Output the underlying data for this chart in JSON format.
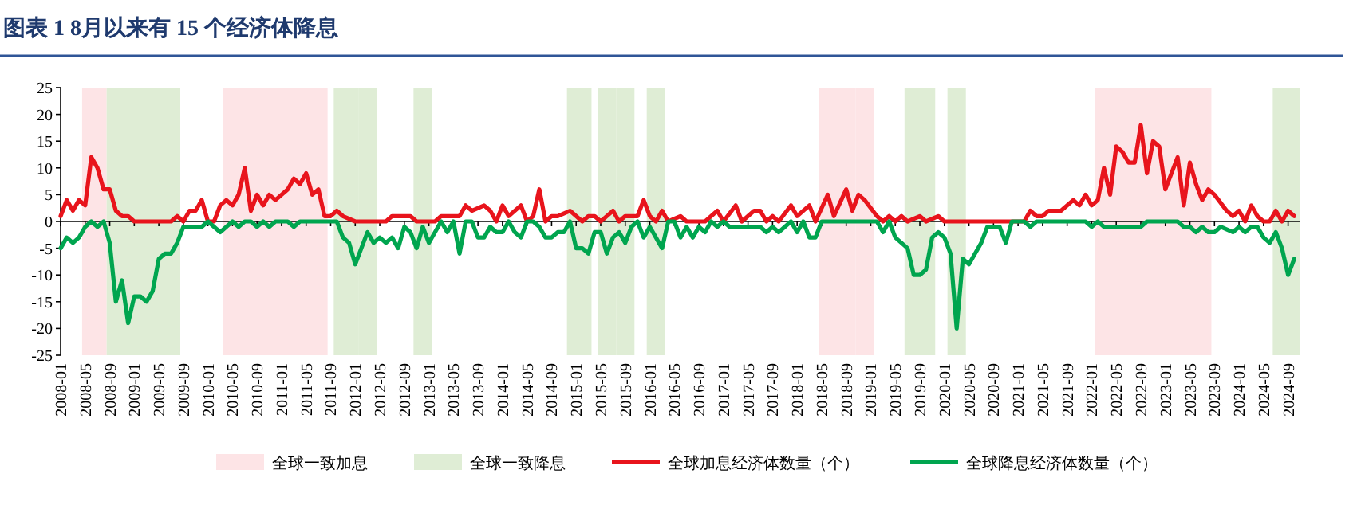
{
  "chart_data": {
    "type": "line",
    "title": "图表 1  8月以来有 15 个经济体降息",
    "legend": "bottom",
    "xlim": [
      "2008-01",
      "2024-11"
    ],
    "xticks": [
      "2008-01",
      "2008-05",
      "2008-09",
      "2009-01",
      "2009-05",
      "2009-09",
      "2010-01",
      "2010-05",
      "2010-09",
      "2011-01",
      "2011-05",
      "2011-09",
      "2012-01",
      "2012-05",
      "2012-09",
      "2013-01",
      "2013-05",
      "2013-09",
      "2014-01",
      "2014-05",
      "2014-09",
      "2015-01",
      "2015-05",
      "2015-09",
      "2016-01",
      "2016-05",
      "2016-09",
      "2017-01",
      "2017-05",
      "2017-09",
      "2018-01",
      "2018-05",
      "2018-09",
      "2019-01",
      "2019-05",
      "2019-09",
      "2020-01",
      "2020-05",
      "2020-09",
      "2021-01",
      "2021-05",
      "2021-09",
      "2022-01",
      "2022-05",
      "2022-09",
      "2023-01",
      "2023-05",
      "2023-09",
      "2024-01",
      "2024-05",
      "2024-09"
    ],
    "ylim": [
      -25,
      25
    ],
    "yticks": [
      -25,
      -20,
      -15,
      -10,
      -5,
      0,
      5,
      10,
      15,
      20,
      25
    ],
    "bands": [
      {
        "axis": "x",
        "from": "2008-05",
        "to": "2008-08",
        "label": "全球一致加息",
        "color": "#fde4e6"
      },
      {
        "axis": "x",
        "from": "2008-09",
        "to": "2009-08",
        "label": "全球一致降息",
        "color": "#dfedd5"
      },
      {
        "axis": "x",
        "from": "2010-04",
        "to": "2011-08",
        "color": "#fde4e6"
      },
      {
        "axis": "x",
        "from": "2011-10",
        "to": "2012-01",
        "color": "#dfedd5"
      },
      {
        "axis": "x",
        "from": "2012-02",
        "to": "2012-04",
        "color": "#dfedd5"
      },
      {
        "axis": "x",
        "from": "2012-11",
        "to": "2013-01",
        "color": "#dfedd5"
      },
      {
        "axis": "x",
        "from": "2014-12",
        "to": "2015-03",
        "color": "#dfedd5"
      },
      {
        "axis": "x",
        "from": "2015-05",
        "to": "2015-07",
        "color": "#dfedd5"
      },
      {
        "axis": "x",
        "from": "2015-08",
        "to": "2015-10",
        "color": "#dfedd5"
      },
      {
        "axis": "x",
        "from": "2016-01",
        "to": "2016-03",
        "color": "#dfedd5"
      },
      {
        "axis": "x",
        "from": "2018-05",
        "to": "2018-10",
        "color": "#fde4e6"
      },
      {
        "axis": "x",
        "from": "2018-11",
        "to": "2019-01",
        "color": "#fde4e6"
      },
      {
        "axis": "x",
        "from": "2019-07",
        "to": "2019-11",
        "color": "#dfedd5"
      },
      {
        "axis": "x",
        "from": "2020-02",
        "to": "2020-04",
        "color": "#dfedd5"
      },
      {
        "axis": "x",
        "from": "2022-02",
        "to": "2023-08",
        "color": "#fde4e6"
      },
      {
        "axis": "x",
        "from": "2024-07",
        "to": "2024-11",
        "color": "#dfedd5"
      }
    ],
    "series": [
      {
        "name": "全球加息经济体数量（个）",
        "color": "#e8141c",
        "x": [
          "2008-01",
          "2008-02",
          "2008-03",
          "2008-04",
          "2008-05",
          "2008-06",
          "2008-07",
          "2008-08",
          "2008-09",
          "2008-10",
          "2008-11",
          "2008-12",
          "2009-01",
          "2009-07",
          "2009-08",
          "2009-09",
          "2009-10",
          "2009-11",
          "2009-12",
          "2010-01",
          "2010-02",
          "2010-03",
          "2010-04",
          "2010-05",
          "2010-06",
          "2010-07",
          "2010-08",
          "2010-09",
          "2010-10",
          "2010-11",
          "2010-12",
          "2011-02",
          "2011-03",
          "2011-04",
          "2011-05",
          "2011-06",
          "2011-07",
          "2011-08",
          "2011-09",
          "2011-10",
          "2011-11",
          "2012-01",
          "2012-06",
          "2012-07",
          "2012-10",
          "2012-11",
          "2013-02",
          "2013-03",
          "2013-06",
          "2013-07",
          "2013-08",
          "2013-10",
          "2013-11",
          "2013-12",
          "2014-01",
          "2014-02",
          "2014-04",
          "2014-05",
          "2014-06",
          "2014-07",
          "2014-08",
          "2014-09",
          "2014-10",
          "2014-12",
          "2015-01",
          "2015-02",
          "2015-03",
          "2015-04",
          "2015-05",
          "2015-07",
          "2015-08",
          "2015-09",
          "2015-11",
          "2015-12",
          "2016-01",
          "2016-02",
          "2016-03",
          "2016-04",
          "2016-06",
          "2016-07",
          "2016-10",
          "2016-12",
          "2017-01",
          "2017-03",
          "2017-04",
          "2017-06",
          "2017-07",
          "2017-08",
          "2017-09",
          "2017-10",
          "2017-12",
          "2018-01",
          "2018-03",
          "2018-04",
          "2018-06",
          "2018-07",
          "2018-09",
          "2018-10",
          "2018-11",
          "2018-12",
          "2019-02",
          "2019-03",
          "2019-04",
          "2019-05",
          "2019-06",
          "2019-07",
          "2019-09",
          "2019-10",
          "2019-12",
          "2020-01",
          "2021-02",
          "2021-03",
          "2021-04",
          "2021-05",
          "2021-06",
          "2021-08",
          "2021-10",
          "2021-11",
          "2021-12",
          "2022-01",
          "2022-02",
          "2022-03",
          "2022-04",
          "2022-05",
          "2022-06",
          "2022-07",
          "2022-08",
          "2022-09",
          "2022-10",
          "2022-11",
          "2022-12",
          "2023-01",
          "2023-03",
          "2023-04",
          "2023-05",
          "2023-06",
          "2023-07",
          "2023-08",
          "2023-09",
          "2023-11",
          "2023-12",
          "2024-01",
          "2024-02",
          "2024-03",
          "2024-04",
          "2024-05",
          "2024-06",
          "2024-07",
          "2024-08",
          "2024-09",
          "2024-10"
        ],
        "values": [
          1,
          4,
          2,
          4,
          3,
          12,
          10,
          6,
          6,
          2,
          1,
          1,
          0,
          0,
          1,
          0,
          2,
          2,
          4,
          0,
          0,
          3,
          4,
          3,
          5,
          10,
          2,
          5,
          3,
          5,
          4,
          6,
          8,
          7,
          9,
          5,
          6,
          1,
          1,
          2,
          1,
          0,
          0,
          1,
          1,
          0,
          0,
          1,
          1,
          3,
          2,
          3,
          2,
          0,
          3,
          1,
          3,
          0,
          1,
          6,
          0,
          1,
          1,
          2,
          1,
          0,
          1,
          1,
          0,
          2,
          0,
          1,
          1,
          4,
          1,
          0,
          2,
          0,
          1,
          0,
          0,
          2,
          0,
          3,
          0,
          2,
          2,
          0,
          1,
          0,
          3,
          1,
          3,
          0,
          5,
          1,
          6,
          2,
          5,
          4,
          1,
          0,
          1,
          0,
          1,
          0,
          1,
          0,
          1,
          0,
          0,
          2,
          1,
          1,
          2,
          2,
          4,
          3,
          5,
          3,
          4,
          10,
          5,
          14,
          13,
          11,
          11,
          18,
          9,
          15,
          14,
          6,
          12,
          3,
          11,
          7,
          4,
          6,
          5,
          2,
          1,
          2,
          0,
          3,
          1,
          0,
          0,
          2,
          0,
          2,
          1
        ]
      },
      {
        "name": "全球降息经济体数量（个）",
        "color": "#00a54f",
        "x": [
          "2008-01",
          "2008-02",
          "2008-03",
          "2008-04",
          "2008-05",
          "2008-06",
          "2008-07",
          "2008-08",
          "2008-09",
          "2008-10",
          "2008-11",
          "2008-12",
          "2009-01",
          "2009-02",
          "2009-03",
          "2009-04",
          "2009-05",
          "2009-06",
          "2009-07",
          "2009-08",
          "2009-09",
          "2009-12",
          "2010-01",
          "2010-02",
          "2010-03",
          "2010-04",
          "2010-05",
          "2010-06",
          "2010-07",
          "2010-08",
          "2010-09",
          "2010-10",
          "2010-11",
          "2010-12",
          "2011-02",
          "2011-03",
          "2011-04",
          "2011-10",
          "2011-11",
          "2011-12",
          "2012-01",
          "2012-02",
          "2012-03",
          "2012-04",
          "2012-05",
          "2012-06",
          "2012-07",
          "2012-08",
          "2012-09",
          "2012-10",
          "2012-11",
          "2012-12",
          "2013-01",
          "2013-02",
          "2013-03",
          "2013-04",
          "2013-05",
          "2013-06",
          "2013-07",
          "2013-08",
          "2013-09",
          "2013-10",
          "2013-11",
          "2013-12",
          "2014-01",
          "2014-02",
          "2014-03",
          "2014-04",
          "2014-05",
          "2014-06",
          "2014-07",
          "2014-08",
          "2014-09",
          "2014-10",
          "2014-11",
          "2014-12",
          "2015-01",
          "2015-02",
          "2015-03",
          "2015-04",
          "2015-05",
          "2015-06",
          "2015-07",
          "2015-08",
          "2015-09",
          "2015-10",
          "2015-11",
          "2015-12",
          "2016-01",
          "2016-03",
          "2016-04",
          "2016-05",
          "2016-06",
          "2016-07",
          "2016-08",
          "2016-09",
          "2016-10",
          "2016-11",
          "2016-12",
          "2017-01",
          "2017-02",
          "2017-07",
          "2017-08",
          "2017-09",
          "2017-10",
          "2017-11",
          "2017-12",
          "2018-01",
          "2018-02",
          "2018-03",
          "2018-04",
          "2018-05",
          "2019-02",
          "2019-03",
          "2019-04",
          "2019-05",
          "2019-06",
          "2019-07",
          "2019-08",
          "2019-09",
          "2019-10",
          "2019-11",
          "2019-12",
          "2020-01",
          "2020-02",
          "2020-03",
          "2020-04",
          "2020-05",
          "2020-06",
          "2020-07",
          "2020-08",
          "2020-10",
          "2020-11",
          "2020-12",
          "2021-02",
          "2021-03",
          "2021-04",
          "2021-12",
          "2022-01",
          "2022-02",
          "2022-03",
          "2022-09",
          "2022-10",
          "2023-03",
          "2023-04",
          "2023-05",
          "2023-06",
          "2023-07",
          "2023-08",
          "2023-09",
          "2023-10",
          "2023-12",
          "2024-01",
          "2024-02",
          "2024-03",
          "2024-04",
          "2024-05",
          "2024-06",
          "2024-07",
          "2024-08",
          "2024-09",
          "2024-10"
        ],
        "values": [
          -5,
          -3,
          -4,
          -3,
          -1,
          0,
          -1,
          0,
          -4,
          -15,
          -11,
          -19,
          -14,
          -14,
          -15,
          -13,
          -7,
          -6,
          -6,
          -4,
          -1,
          -1,
          0,
          -1,
          -2,
          -1,
          0,
          -1,
          0,
          0,
          -1,
          0,
          -1,
          0,
          0,
          -1,
          0,
          0,
          -3,
          -4,
          -8,
          -5,
          -2,
          -4,
          -3,
          -4,
          -3,
          -5,
          -1,
          -2,
          -5,
          -1,
          -4,
          -2,
          0,
          -2,
          0,
          -6,
          0,
          0,
          -3,
          -3,
          -1,
          -2,
          -2,
          0,
          -2,
          -3,
          0,
          0,
          -1,
          -3,
          -3,
          -2,
          -2,
          0,
          -5,
          -5,
          -6,
          -2,
          -2,
          -6,
          -3,
          -2,
          -4,
          -1,
          0,
          -3,
          -1,
          -5,
          0,
          0,
          -3,
          -1,
          -3,
          -1,
          -2,
          0,
          -1,
          0,
          -1,
          -1,
          -2,
          -1,
          -2,
          -1,
          0,
          -2,
          0,
          -3,
          -3,
          0,
          0,
          -2,
          0,
          -3,
          -4,
          -5,
          -10,
          -10,
          -9,
          -3,
          -2,
          -3,
          -6,
          -20,
          -7,
          -8,
          -6,
          -4,
          -1,
          -1,
          -4,
          0,
          0,
          -1,
          0,
          0,
          -1,
          0,
          -1,
          -1,
          0,
          0,
          -1,
          -1,
          -2,
          -1,
          -2,
          -2,
          -1,
          -2,
          -1,
          -2,
          -1,
          -1,
          -3,
          -4,
          -2,
          -5,
          -10,
          -7
        ]
      }
    ]
  }
}
